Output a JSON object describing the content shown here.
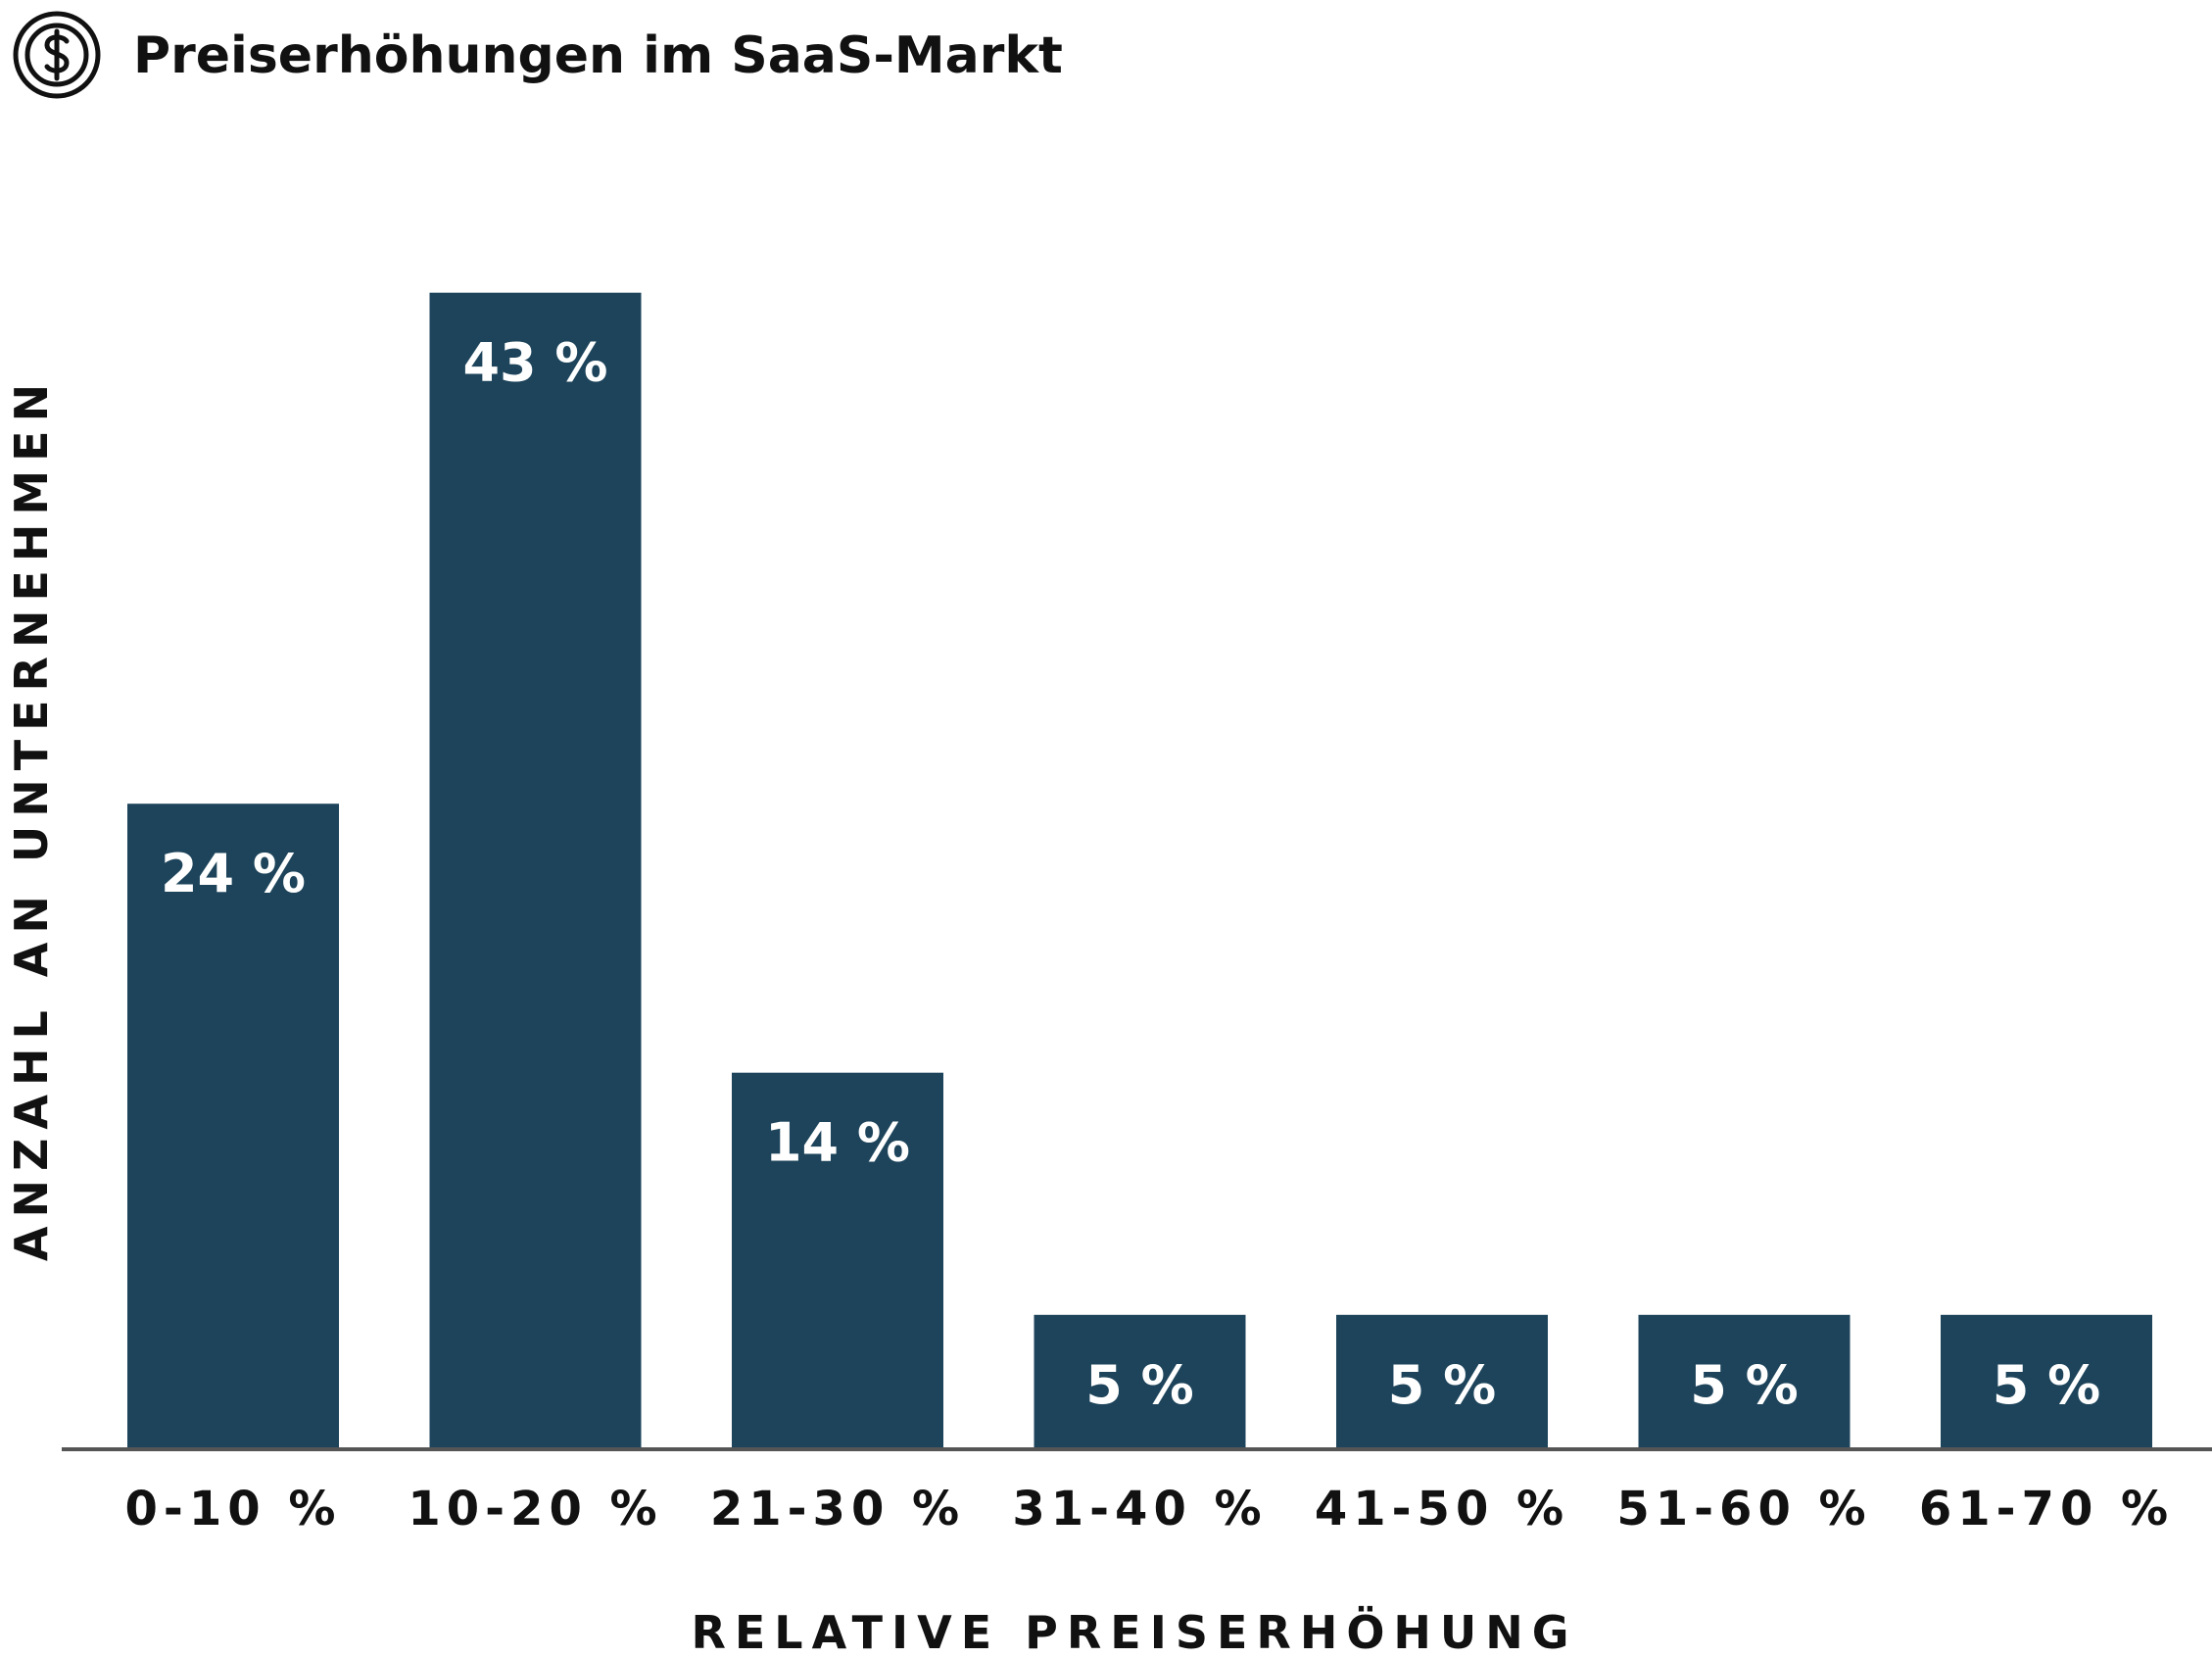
{
  "header": {
    "title": "Preiserhöhungen im SaaS-Markt",
    "icon": "dollar-circle-icon"
  },
  "colors": {
    "bar": "#1d445b",
    "axis": "#555555",
    "value_label": "#ffffff",
    "text": "#111111"
  },
  "chart_data": {
    "type": "bar",
    "title": "Preiserhöhungen im SaaS-Markt",
    "xlabel": "RELATIVE PREISERHÖHUNG",
    "ylabel": "ANZAHL AN UNTERNEHMEN",
    "categories": [
      "0-10 %",
      "10-20 %",
      "21-30 %",
      "31-40 %",
      "41-50 %",
      "51-60 %",
      "61-70 %"
    ],
    "values": [
      24,
      43,
      14,
      5,
      5,
      5,
      5
    ],
    "value_labels": [
      "24 %",
      "43 %",
      "14 %",
      "5 %",
      "5 %",
      "5 %",
      "5 %"
    ],
    "unit": "%",
    "ylim": [
      0,
      50
    ],
    "grid": false,
    "legend": "none"
  }
}
